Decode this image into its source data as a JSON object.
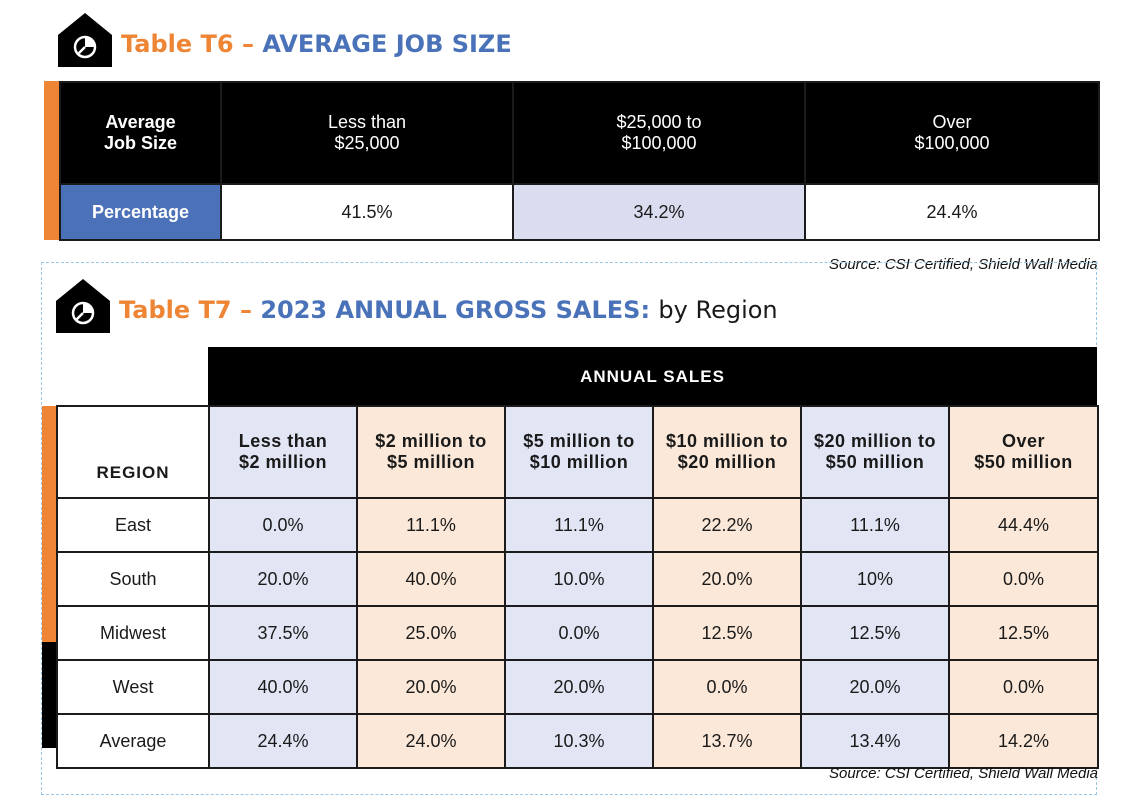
{
  "t6": {
    "title_number": "Table T6",
    "title_dash": "–",
    "title_main": "AVERAGE JOB SIZE",
    "row_header_line1": "Average",
    "row_header_line2": "Job Size",
    "columns": [
      {
        "line1": "Less than",
        "line2": "$25,000"
      },
      {
        "line1": "$25,000 to",
        "line2": "$100,000"
      },
      {
        "line1": "Over",
        "line2": "$100,000"
      }
    ],
    "row_label": "Percentage",
    "values": [
      "41.5%",
      "34.2%",
      "24.4%"
    ],
    "source": "Source: CSI Certified, Shield Wall Media"
  },
  "t7": {
    "title_number": "Table T7",
    "title_dash": "–",
    "title_main": "2023 ANNUAL GROSS SALES:",
    "title_suffix": "by Region",
    "group_header": "ANNUAL SALES",
    "region_header": "REGION",
    "columns": [
      {
        "line1": "Less than",
        "line2": "$2 million"
      },
      {
        "line1": "$2 million to",
        "line2": "$5 million"
      },
      {
        "line1": "$5 million to",
        "line2": "$10 million"
      },
      {
        "line1": "$10 million to",
        "line2": "$20 million"
      },
      {
        "line1": "$20 million to",
        "line2": "$50 million"
      },
      {
        "line1": "Over",
        "line2": "$50 million"
      }
    ],
    "rows": [
      {
        "region": "East",
        "values": [
          "0.0%",
          "11.1%",
          "11.1%",
          "22.2%",
          "11.1%",
          "44.4%"
        ]
      },
      {
        "region": "South",
        "values": [
          "20.0%",
          "40.0%",
          "10.0%",
          "20.0%",
          "10%",
          "0.0%"
        ]
      },
      {
        "region": "Midwest",
        "values": [
          "37.5%",
          "25.0%",
          "0.0%",
          "12.5%",
          "12.5%",
          "12.5%"
        ]
      },
      {
        "region": "West",
        "values": [
          "40.0%",
          "20.0%",
          "20.0%",
          "0.0%",
          "20.0%",
          "0.0%"
        ]
      },
      {
        "region": "Average",
        "values": [
          "24.4%",
          "24.0%",
          "10.3%",
          "13.7%",
          "13.4%",
          "14.2%"
        ]
      }
    ],
    "source": "Source: CSI Certified, Shield Wall Media"
  },
  "chart_data": [
    {
      "type": "table",
      "title": "AVERAGE JOB SIZE",
      "categories": [
        "Less than $25,000",
        "$25,000 to $100,000",
        "Over $100,000"
      ],
      "series": [
        {
          "name": "Percentage",
          "values": [
            41.5,
            34.2,
            24.4
          ]
        }
      ]
    },
    {
      "type": "table",
      "title": "2023 ANNUAL GROSS SALES: by Region",
      "categories": [
        "Less than $2 million",
        "$2 million to $5 million",
        "$5 million to $10 million",
        "$10 million to $20 million",
        "$20 million to $50 million",
        "Over $50 million"
      ],
      "series": [
        {
          "name": "East",
          "values": [
            0.0,
            11.1,
            11.1,
            22.2,
            11.1,
            44.4
          ]
        },
        {
          "name": "South",
          "values": [
            20.0,
            40.0,
            10.0,
            20.0,
            10,
            0.0
          ]
        },
        {
          "name": "Midwest",
          "values": [
            37.5,
            25.0,
            0.0,
            12.5,
            12.5,
            12.5
          ]
        },
        {
          "name": "West",
          "values": [
            40.0,
            20.0,
            20.0,
            0.0,
            20.0,
            0.0
          ]
        },
        {
          "name": "Average",
          "values": [
            24.4,
            24.0,
            10.3,
            13.7,
            13.4,
            14.2
          ]
        }
      ]
    }
  ],
  "colors": {
    "orange": "#ee8534",
    "blue": "#4a72b8",
    "light_blue": "#e1e5f4",
    "peach": "#fbe8d8"
  },
  "icons": {
    "title_icon": "house-pie-chart-icon"
  }
}
